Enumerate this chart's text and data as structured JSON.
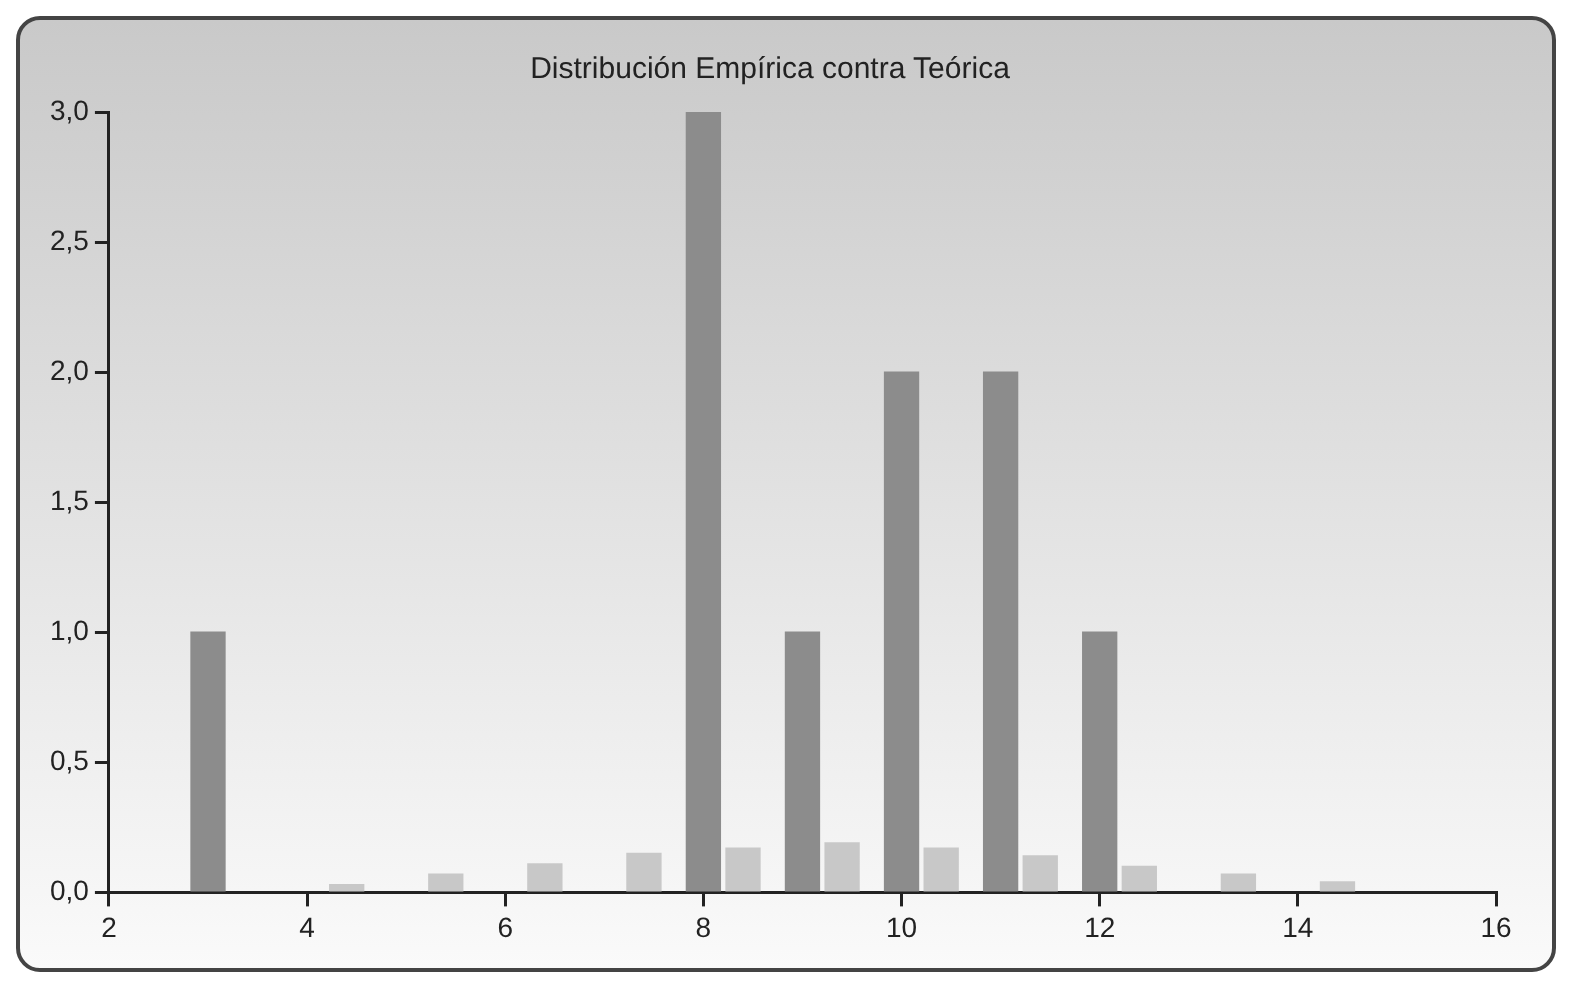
{
  "chart_data": {
    "type": "bar",
    "title": "Distribución Empírica contra Teórica",
    "series": [
      {
        "color": "#8c8c8c",
        "x": [
          3,
          8,
          9,
          10,
          11,
          12
        ],
        "values": [
          1,
          3,
          1,
          2,
          2,
          1
        ]
      },
      {
        "color": "#c8c8c8",
        "x": [
          4.4,
          5.4,
          6.4,
          7.4,
          8.4,
          9.4,
          10.4,
          11.4,
          12.4,
          13.4,
          14.4
        ],
        "values": [
          0.03,
          0.07,
          0.11,
          0.15,
          0.17,
          0.19,
          0.17,
          0.14,
          0.1,
          0.07,
          0.04
        ]
      }
    ],
    "xlim": [
      2,
      16
    ],
    "xticks": [
      2,
      4,
      6,
      8,
      10,
      12,
      14,
      16
    ],
    "ylim": [
      0,
      3
    ],
    "yticks": [
      {
        "value": 0,
        "label": "0,0"
      },
      {
        "value": 0.5,
        "label": "0,5"
      },
      {
        "value": 1,
        "label": "1,0"
      },
      {
        "value": 1.5,
        "label": "1,5"
      },
      {
        "value": 2,
        "label": "2,0"
      },
      {
        "value": 2.5,
        "label": "2,5"
      },
      {
        "value": 3,
        "label": "3,0"
      }
    ],
    "grid": false,
    "legend": false
  }
}
